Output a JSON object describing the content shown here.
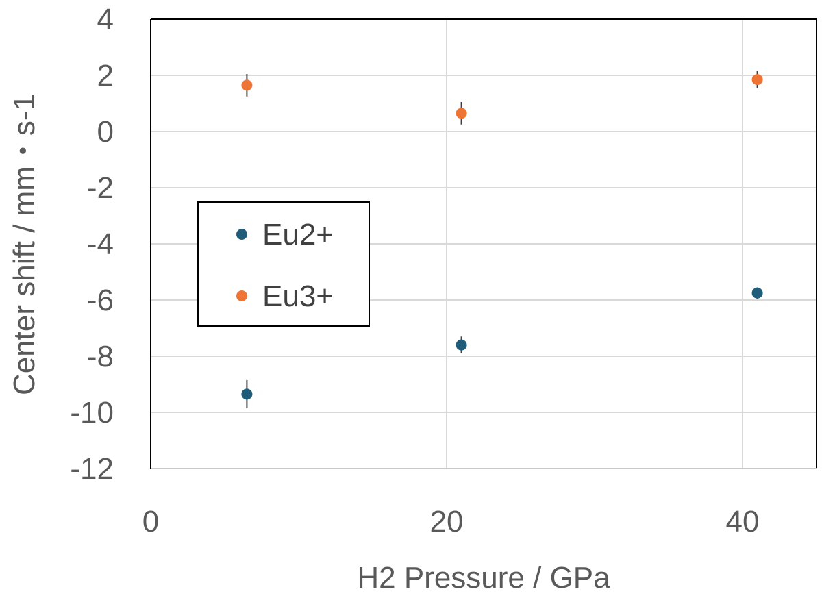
{
  "chart_data": {
    "type": "scatter",
    "title": "",
    "xlabel": "H2 Pressure / GPa",
    "ylabel": "Center shift / mm・s-1",
    "xlim": [
      0,
      45
    ],
    "ylim": [
      -12,
      4
    ],
    "x_ticks": [
      0,
      20,
      40
    ],
    "y_ticks": [
      4,
      2,
      0,
      -2,
      -4,
      -6,
      -8,
      -10,
      -12
    ],
    "grid": true,
    "legend_position": "left",
    "series": [
      {
        "name": "Eu2+",
        "color": "#1f5c7a",
        "points": [
          {
            "x": 6.5,
            "y": -9.35,
            "err": 0.5
          },
          {
            "x": 21,
            "y": -7.6,
            "err": 0.3
          },
          {
            "x": 41,
            "y": -5.75,
            "err": 0.2
          }
        ]
      },
      {
        "name": "Eu3+",
        "color": "#ed7434",
        "points": [
          {
            "x": 6.5,
            "y": 1.65,
            "err": 0.4
          },
          {
            "x": 21,
            "y": 0.65,
            "err": 0.4
          },
          {
            "x": 41,
            "y": 1.85,
            "err": 0.3
          }
        ]
      }
    ]
  }
}
